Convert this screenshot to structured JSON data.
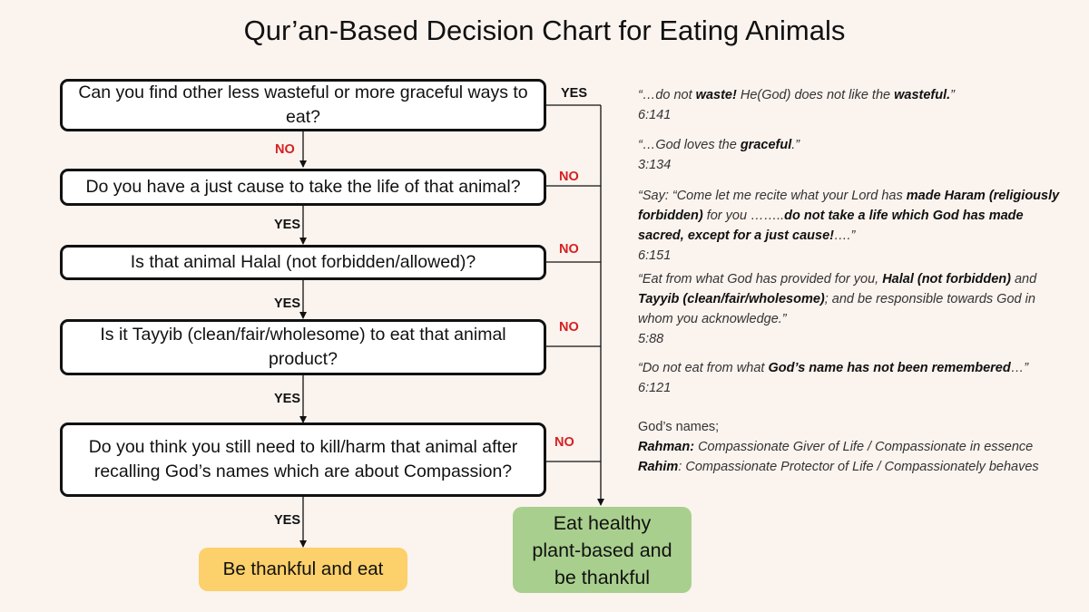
{
  "title": "Qur’an-Based Decision Chart for Eating Animals",
  "questions": [
    {
      "text": "Can you find other less wasteful or more graceful ways to eat?",
      "exit_label": "YES",
      "next_label": "NO"
    },
    {
      "text": "Do you have a just cause to take the life of that animal?",
      "exit_label": "NO",
      "next_label": "YES"
    },
    {
      "text": "Is that animal Halal (not forbidden/allowed)?",
      "exit_label": "NO",
      "next_label": "YES"
    },
    {
      "text": "Is it Tayyib (clean/fair/wholesome) to eat that animal product?",
      "exit_label": "NO",
      "next_label": "YES"
    },
    {
      "text": "Do you think you still need to kill/harm that animal after recalling God’s names which are about Compassion?",
      "exit_label": "NO",
      "next_label": "YES"
    }
  ],
  "outcomes": {
    "eat": "Be thankful and eat",
    "plant": "Eat healthy plant-based and be thankful"
  },
  "quotes": [
    {
      "parts": [
        {
          "t": "“…do not "
        },
        {
          "t": "waste!",
          "b": true
        },
        {
          "t": " He(God) does not like the "
        },
        {
          "t": "wasteful.",
          "b": true
        },
        {
          "t": "”"
        }
      ],
      "ref": "6:141"
    },
    {
      "parts": [
        {
          "t": "“…God loves the "
        },
        {
          "t": "graceful",
          "b": true
        },
        {
          "t": ".”"
        }
      ],
      "ref": "3:134"
    },
    {
      "parts": [
        {
          "t": "“Say: “Come let me recite what your Lord has "
        },
        {
          "t": "made Haram (religiously forbidden)",
          "b": true
        },
        {
          "t": " for you  …….."
        },
        {
          "t": "do not take a life which God has made sacred, except for a just cause!",
          "b": true
        },
        {
          "t": "….”"
        }
      ],
      "ref": "6:151"
    },
    {
      "parts": [
        {
          "t": "“Eat from what God has provided for you, "
        },
        {
          "t": "Halal (not forbidden)",
          "b": true
        },
        {
          "t": " and "
        },
        {
          "t": "Tayyib (clean/fair/wholesome)",
          "b": true
        },
        {
          "t": "; and be responsible towards God in whom you acknowledge.”"
        }
      ],
      "ref": "5:88"
    },
    {
      "parts": [
        {
          "t": "“Do not eat from what "
        },
        {
          "t": "God’s name has not been remembered",
          "b": true
        },
        {
          "t": "…”"
        }
      ],
      "ref": "6:121"
    }
  ],
  "gods_names": {
    "heading": "God’s names;",
    "items": [
      {
        "name": "Rahman:",
        "desc": " Compassionate Giver of Life / Compassionate in essence"
      },
      {
        "name": "Rahim",
        "desc": ": Compassionate Protector of Life / Compassionately behaves"
      }
    ]
  },
  "colors": {
    "background": "#FBF3EE",
    "no_label": "#D62020",
    "eat_box": "#FCD06A",
    "plant_box": "#A9CF8E"
  }
}
